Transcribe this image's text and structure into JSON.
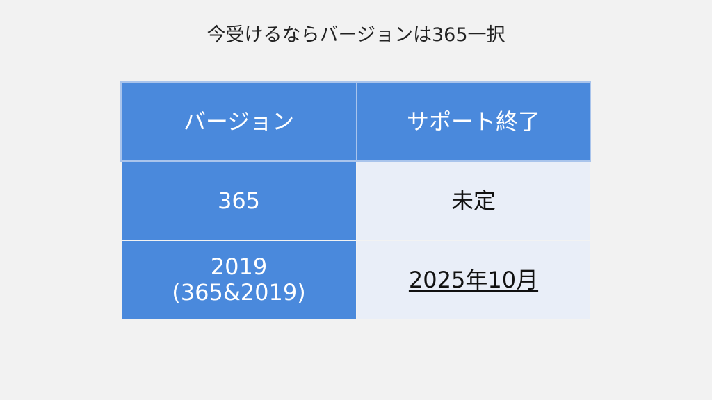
{
  "title": "今受けるならバージョンは365一択",
  "table": {
    "headers": [
      "バージョン",
      "サポート終了"
    ],
    "rows": [
      {
        "version": "365",
        "version_sub": "",
        "support_end": "未定"
      },
      {
        "version": "2019",
        "version_sub": "(365&2019)",
        "support_end": "2025年10月"
      }
    ]
  },
  "colors": {
    "header": "#4a89dc",
    "cell": "#e9eef8",
    "background": "#f2f2f2"
  }
}
